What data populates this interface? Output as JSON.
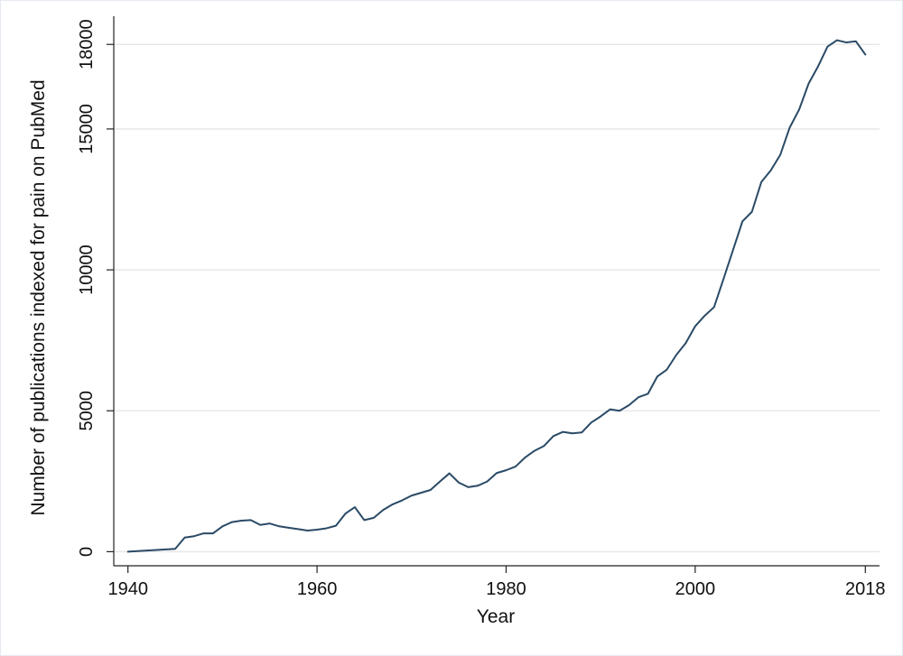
{
  "chart_data": {
    "type": "line",
    "title": "",
    "xlabel": "Year",
    "ylabel": "Number of publications indexed for pain on PubMed",
    "xlim": [
      1938.5,
      2019.5
    ],
    "ylim": [
      -500,
      19000
    ],
    "x_ticks": [
      1940,
      1960,
      1980,
      2000,
      2018
    ],
    "y_ticks": [
      0,
      5000,
      10000,
      15000,
      18000
    ],
    "grid": true,
    "colors": {
      "line": "#2a4a66",
      "grid": "#e8e8e8",
      "axis": "#222222"
    },
    "series": [
      {
        "x": [
          1940,
          1945,
          1946,
          1947,
          1948,
          1949,
          1950,
          1951,
          1952,
          1953,
          1954,
          1955,
          1956,
          1957,
          1958,
          1959,
          1960,
          1961,
          1962,
          1963,
          1964,
          1965,
          1966,
          1967,
          1968,
          1969,
          1970,
          1971,
          1972,
          1973,
          1974,
          1975,
          1976,
          1977,
          1978,
          1979,
          1980,
          1981,
          1982,
          1983,
          1984,
          1985,
          1986,
          1987,
          1988,
          1989,
          1990,
          1991,
          1992,
          1993,
          1994,
          1995,
          1996,
          1997,
          1998,
          1999,
          2000,
          2001,
          2002,
          2003,
          2004,
          2005,
          2006,
          2007,
          2008,
          2009,
          2010,
          2011,
          2012,
          2013,
          2014,
          2015,
          2016,
          2017,
          2018
        ],
        "values": [
          0,
          100,
          500,
          550,
          650,
          650,
          900,
          1050,
          1100,
          1120,
          950,
          1000,
          900,
          850,
          800,
          750,
          780,
          830,
          920,
          1350,
          1580,
          1120,
          1200,
          1480,
          1680,
          1820,
          1990,
          2090,
          2190,
          2490,
          2780,
          2450,
          2290,
          2340,
          2490,
          2790,
          2890,
          3020,
          3340,
          3580,
          3750,
          4100,
          4250,
          4200,
          4230,
          4580,
          4800,
          5050,
          5000,
          5200,
          5480,
          5600,
          6220,
          6460,
          6980,
          7400,
          8000,
          8370,
          8680,
          9680,
          10700,
          11720,
          12060,
          13120,
          13530,
          14080,
          15050,
          15690,
          16610,
          17220,
          17920,
          18150,
          18070,
          18110,
          17640
        ]
      }
    ]
  }
}
